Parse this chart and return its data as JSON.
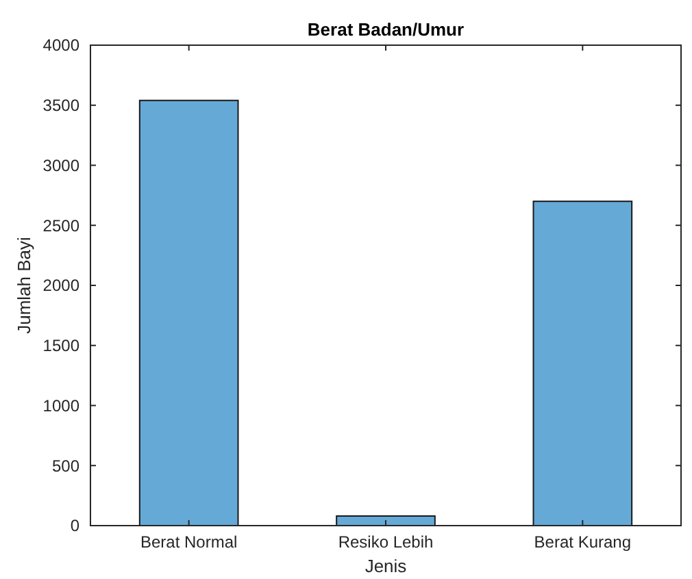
{
  "chart_data": {
    "type": "bar",
    "title": "Berat Badan/Umur",
    "xlabel": "Jenis",
    "ylabel": "Jumlah Bayi",
    "categories": [
      "Berat Normal",
      "Resiko Lebih",
      "Berat Kurang"
    ],
    "values": [
      3540,
      80,
      2700
    ],
    "color": "#65a9d7",
    "ylim": [
      0,
      4000
    ],
    "yticks": [
      0,
      500,
      1000,
      1500,
      2000,
      2500,
      3000,
      3500,
      4000
    ],
    "grid": false
  }
}
